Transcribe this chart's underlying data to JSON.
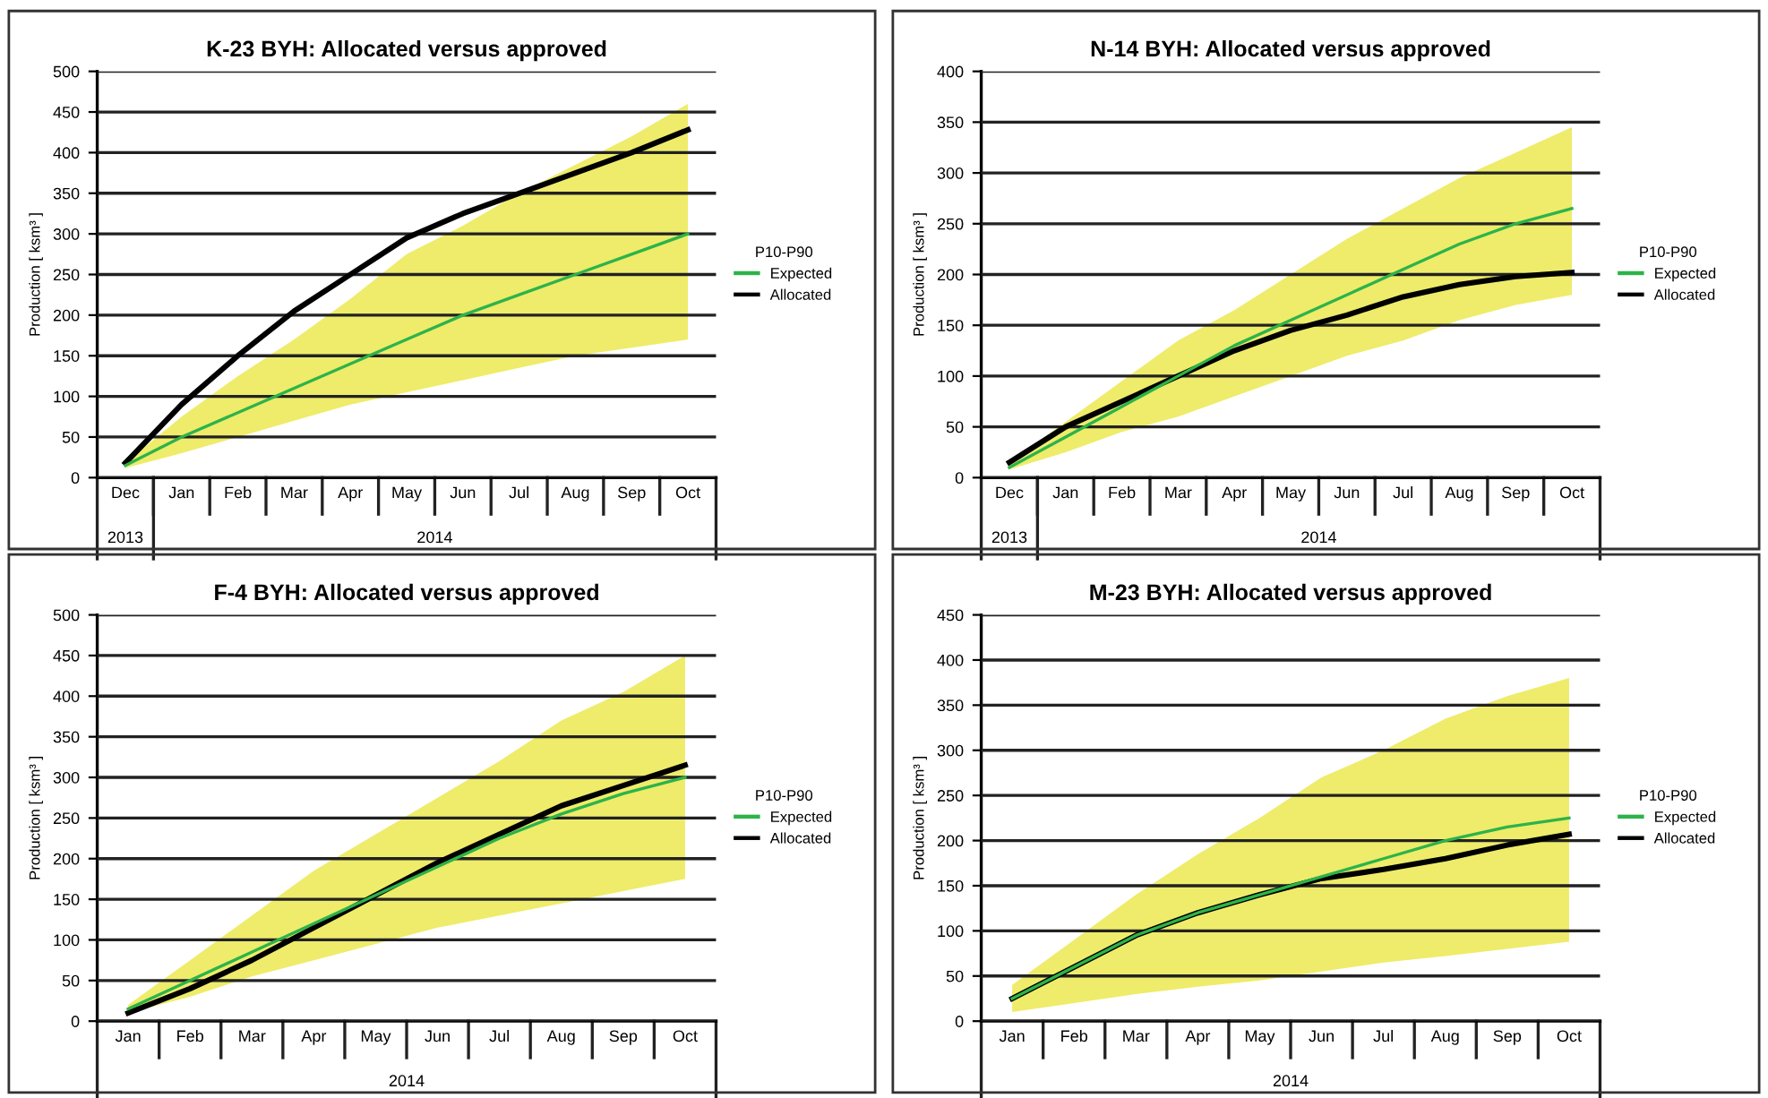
{
  "chart_data": [
    {
      "type": "line",
      "title": "K-23 BYH: Allocated versus approved",
      "ylabel": "Production [ ksm³ ]",
      "legend_title": "P10-P90",
      "legend": "right",
      "grid": "y",
      "annotations": [
        "2013",
        "2014"
      ],
      "categories": [
        "Dec",
        "Jan",
        "Feb",
        "Mar",
        "Apr",
        "May",
        "Jun",
        "Jul",
        "Aug",
        "Sep",
        "Oct"
      ],
      "ylim": [
        0,
        500
      ],
      "yticks": [
        0,
        50,
        100,
        150,
        200,
        250,
        300,
        350,
        400,
        450,
        500
      ],
      "series": [
        {
          "name": "Expected",
          "color": "#2db34a",
          "values": [
            15,
            50,
            80,
            110,
            140,
            170,
            200,
            225,
            250,
            275,
            300
          ],
          "lower": [
            12,
            30,
            50,
            70,
            90,
            105,
            120,
            135,
            150,
            160,
            170
          ],
          "upper": [
            18,
            75,
            125,
            170,
            220,
            275,
            310,
            350,
            385,
            420,
            460
          ]
        },
        {
          "name": "Allocated",
          "color": "#000000",
          "values": [
            18,
            90,
            150,
            205,
            250,
            295,
            325,
            350,
            375,
            400,
            428
          ]
        }
      ]
    },
    {
      "type": "line",
      "title": "N-14 BYH: Allocated versus approved",
      "ylabel": "Production [ ksm³ ]",
      "legend_title": "P10-P90",
      "legend": "right",
      "grid": "y",
      "annotations": [
        "2013",
        "2014"
      ],
      "categories": [
        "Dec",
        "Jan",
        "Feb",
        "Mar",
        "Apr",
        "May",
        "Jun",
        "Jul",
        "Aug",
        "Sep",
        "Oct"
      ],
      "ylim": [
        0,
        400
      ],
      "yticks": [
        0,
        50,
        100,
        150,
        200,
        250,
        300,
        350,
        400
      ],
      "series": [
        {
          "name": "Expected",
          "color": "#2db34a",
          "values": [
            10,
            40,
            70,
            100,
            130,
            155,
            180,
            205,
            230,
            250,
            265
          ],
          "lower": [
            8,
            25,
            45,
            60,
            80,
            100,
            120,
            135,
            155,
            170,
            180
          ],
          "upper": [
            15,
            55,
            95,
            135,
            165,
            200,
            235,
            265,
            295,
            320,
            345
          ]
        },
        {
          "name": "Allocated",
          "color": "#000000",
          "values": [
            15,
            50,
            75,
            100,
            125,
            145,
            160,
            178,
            190,
            198,
            202
          ]
        }
      ]
    },
    {
      "type": "line",
      "title": "F-4 BYH: Allocated versus approved",
      "ylabel": "Production [ ksm³ ]",
      "legend_title": "P10-P90",
      "legend": "right",
      "grid": "y",
      "annotations": [
        "2014"
      ],
      "categories": [
        "Jan",
        "Feb",
        "Mar",
        "Apr",
        "May",
        "Jun",
        "Jul",
        "Aug",
        "Sep",
        "Oct"
      ],
      "ylim": [
        0,
        500
      ],
      "yticks": [
        0,
        50,
        100,
        150,
        200,
        250,
        300,
        350,
        400,
        450,
        500
      ],
      "series": [
        {
          "name": "Expected",
          "color": "#2db34a",
          "values": [
            15,
            50,
            85,
            120,
            155,
            190,
            225,
            255,
            280,
            300
          ],
          "lower": [
            10,
            30,
            55,
            75,
            95,
            115,
            130,
            145,
            160,
            175
          ],
          "upper": [
            20,
            75,
            130,
            185,
            230,
            275,
            320,
            370,
            405,
            450
          ]
        },
        {
          "name": "Allocated",
          "color": "#000000",
          "values": [
            10,
            40,
            75,
            115,
            155,
            195,
            230,
            265,
            290,
            315
          ]
        }
      ]
    },
    {
      "type": "line",
      "title": "M-23 BYH: Allocated versus approved",
      "ylabel": "Production [ ksm³ ]",
      "legend_title": "P10-P90",
      "legend": "right",
      "grid": "y",
      "annotations": [
        "2014"
      ],
      "categories": [
        "Jan",
        "Feb",
        "Mar",
        "Apr",
        "May",
        "Jun",
        "Jul",
        "Aug",
        "Sep",
        "Oct"
      ],
      "ylim": [
        0,
        450
      ],
      "yticks": [
        0,
        50,
        100,
        150,
        200,
        250,
        300,
        350,
        400,
        450
      ],
      "series": [
        {
          "name": "Expected",
          "color": "#2db34a",
          "values": [
            25,
            60,
            95,
            120,
            140,
            160,
            180,
            200,
            215,
            225
          ],
          "lower": [
            10,
            20,
            30,
            38,
            45,
            55,
            65,
            72,
            80,
            88
          ],
          "upper": [
            40,
            90,
            140,
            185,
            225,
            270,
            300,
            335,
            360,
            380
          ]
        },
        {
          "name": "Allocated",
          "color": "#000000",
          "values": [
            25,
            60,
            95,
            120,
            140,
            158,
            168,
            180,
            195,
            207
          ]
        }
      ]
    }
  ]
}
